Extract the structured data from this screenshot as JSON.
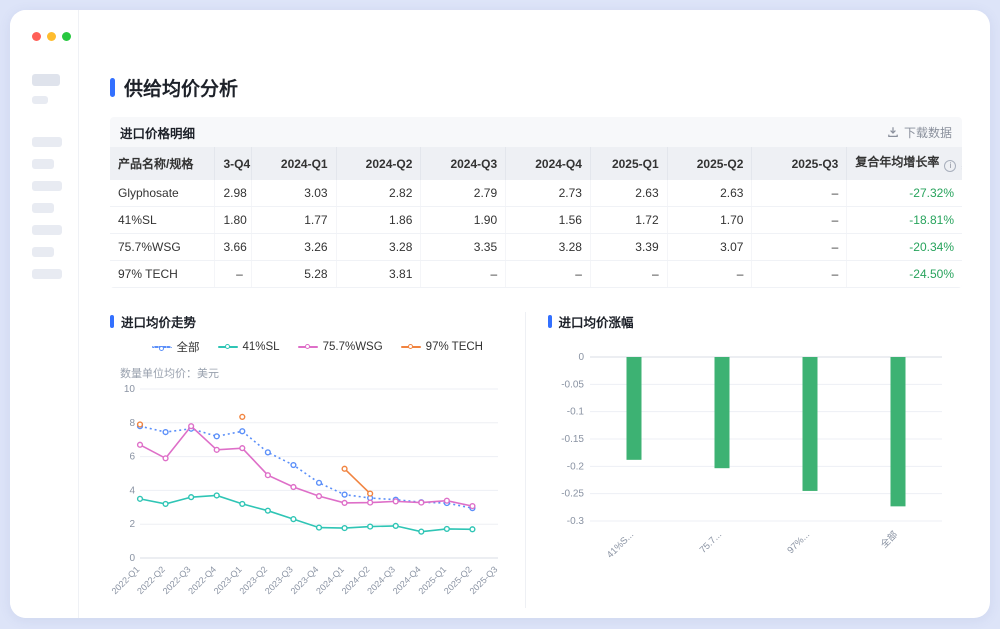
{
  "page": {
    "title": "供给均价分析"
  },
  "colors": {
    "accent": "#3370ff",
    "green": "#27a35c",
    "muted_link": "#8a909c",
    "traffic_lights": [
      "#ff5f57",
      "#febc2e",
      "#28c840"
    ]
  },
  "table_card": {
    "title": "进口价格明细",
    "download_label": "下载数据",
    "columns": [
      "产品名称/规格",
      "3-Q4",
      "2024-Q1",
      "2024-Q2",
      "2024-Q3",
      "2024-Q4",
      "2025-Q1",
      "2025-Q2",
      "2025-Q3",
      "复合年均增长率"
    ],
    "rows": [
      {
        "name": "Glyphosate",
        "values": [
          "2.98",
          "3.03",
          "2.82",
          "2.79",
          "2.73",
          "2.63",
          "2.63",
          "–"
        ],
        "cagr": "-27.32%"
      },
      {
        "name": "41%SL",
        "values": [
          "1.80",
          "1.77",
          "1.86",
          "1.90",
          "1.56",
          "1.72",
          "1.70",
          "–"
        ],
        "cagr": "-18.81%"
      },
      {
        "name": "75.7%WSG",
        "values": [
          "3.66",
          "3.26",
          "3.28",
          "3.35",
          "3.28",
          "3.39",
          "3.07",
          "–"
        ],
        "cagr": "-20.34%"
      },
      {
        "name": "97% TECH",
        "values": [
          "–",
          "5.28",
          "3.81",
          "–",
          "–",
          "–",
          "–",
          "–"
        ],
        "cagr": "-24.50%"
      }
    ]
  },
  "chart_data": [
    {
      "type": "line",
      "title": "进口均价走势",
      "subtitle": "数量单位均价：美元",
      "categories": [
        "2022-Q1",
        "2022-Q2",
        "2022-Q3",
        "2022-Q4",
        "2023-Q1",
        "2023-Q2",
        "2023-Q3",
        "2023-Q4",
        "2024-Q1",
        "2024-Q2",
        "2024-Q3",
        "2024-Q4",
        "2025-Q1",
        "2025-Q2",
        "2025-Q3"
      ],
      "series": [
        {
          "name": "全部",
          "color": "#5b8ff9",
          "style": "dotted",
          "values": [
            7.8,
            7.45,
            7.65,
            7.2,
            7.5,
            6.25,
            5.5,
            4.45,
            3.75,
            3.55,
            3.45,
            3.3,
            3.25,
            2.95,
            null
          ]
        },
        {
          "name": "41%SL",
          "color": "#2fc5b5",
          "values": [
            3.5,
            3.2,
            3.6,
            3.7,
            3.2,
            2.8,
            2.3,
            1.8,
            1.77,
            1.86,
            1.9,
            1.56,
            1.72,
            1.7,
            null
          ]
        },
        {
          "name": "75.7%WSG",
          "color": "#de6fc8",
          "values": [
            6.7,
            5.9,
            7.8,
            6.4,
            6.5,
            4.9,
            4.2,
            3.66,
            3.26,
            3.28,
            3.35,
            3.28,
            3.39,
            3.07,
            null
          ]
        },
        {
          "name": "97% TECH",
          "color": "#f18440",
          "values": [
            7.9,
            null,
            null,
            null,
            8.35,
            null,
            null,
            null,
            5.28,
            3.81,
            null,
            null,
            null,
            null,
            null
          ]
        }
      ],
      "ylim": [
        0,
        10
      ],
      "yticks": [
        0,
        2,
        4,
        6,
        8,
        10
      ],
      "legend_position": "top",
      "grid": true
    },
    {
      "type": "bar",
      "title": "进口均价涨幅",
      "categories": [
        "41%S...",
        "75.7...",
        "97%...",
        "全部"
      ],
      "values": [
        -0.1881,
        -0.2034,
        -0.245,
        -0.2732
      ],
      "color": "#3db273",
      "ylim": [
        -0.3,
        0
      ],
      "yticks": [
        "0",
        "-0.05",
        "-0.1",
        "-0.15",
        "-0.2",
        "-0.25",
        "-0.3"
      ],
      "grid": true
    }
  ]
}
